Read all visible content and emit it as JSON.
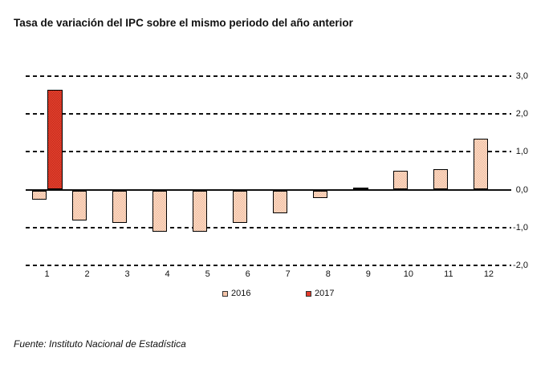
{
  "title": "Tasa de variación del IPC sobre el mismo periodo del año anterior",
  "source_note": "Fuente: Instituto Nacional de Estadística",
  "legend": {
    "items": [
      {
        "label": "2016",
        "color": "#F4C4A8"
      },
      {
        "label": "2017",
        "color": "#E23B2B"
      }
    ]
  },
  "chart_data": {
    "type": "bar",
    "title": "Tasa de variación del IPC sobre el mismo periodo del año anterior",
    "xlabel": "",
    "ylabel": "",
    "categories": [
      "1",
      "2",
      "3",
      "4",
      "5",
      "6",
      "7",
      "8",
      "9",
      "10",
      "11",
      "12"
    ],
    "series": [
      {
        "name": "2016",
        "color": "#F4C4A8",
        "values": [
          -0.25,
          -0.8,
          -0.85,
          -1.1,
          -1.1,
          -0.85,
          -0.6,
          -0.2,
          0.0,
          0.5,
          0.55,
          1.35
        ]
      },
      {
        "name": "2017",
        "color": "#E23B2B",
        "values": [
          2.65,
          null,
          null,
          null,
          null,
          null,
          null,
          null,
          null,
          null,
          null,
          null
        ]
      }
    ],
    "ylim": [
      -2.0,
      3.0
    ],
    "yticks": [
      {
        "value": 3.0,
        "label": "3,0"
      },
      {
        "value": 2.0,
        "label": "2,0"
      },
      {
        "value": 1.0,
        "label": "1,0"
      },
      {
        "value": 0.0,
        "label": "0,0"
      },
      {
        "value": -1.0,
        "label": "-1,0"
      },
      {
        "value": -2.0,
        "label": "-2,0"
      }
    ],
    "grid": "horizontal-dashed",
    "legend_position": "bottom"
  }
}
